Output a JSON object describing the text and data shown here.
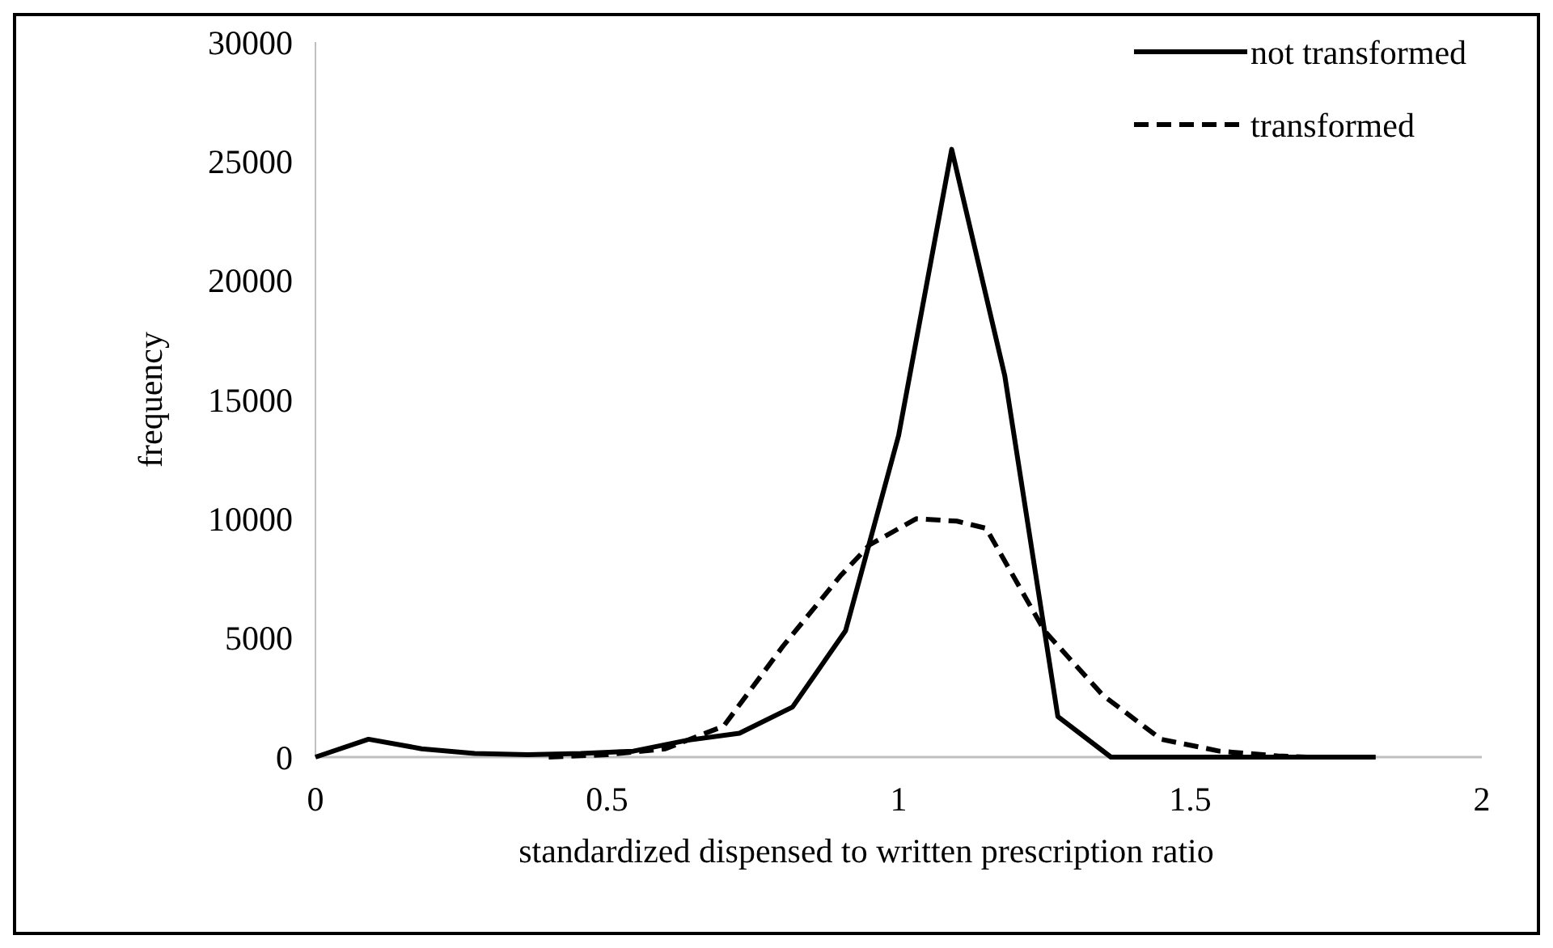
{
  "chart_data": {
    "type": "line",
    "xlabel": "standardized dispensed to written prescription ratio",
    "ylabel": "frequency",
    "xlim": [
      0,
      2
    ],
    "xticks": [
      0,
      0.5,
      1,
      1.5,
      2
    ],
    "ylim": [
      0,
      30000
    ],
    "yticks": [
      0,
      5000,
      10000,
      15000,
      20000,
      25000,
      30000
    ],
    "grid": false,
    "legend": "top right",
    "marker": "none",
    "series": [
      {
        "name": "not transformed",
        "color": "#000000",
        "line_style": "solid",
        "x": [
          0,
          0.091,
          0.182,
          0.273,
          0.364,
          0.455,
          0.545,
          0.636,
          0.727,
          0.818,
          0.909,
          1,
          1.091,
          1.182,
          1.273,
          1.364,
          1.455,
          1.545,
          1.636,
          1.727,
          1.818
        ],
        "values": [
          0,
          750,
          350,
          150,
          100,
          150,
          250,
          700,
          1000,
          2100,
          5300,
          13500,
          25500,
          16000,
          1700,
          0,
          0,
          0,
          0,
          0,
          0
        ]
      },
      {
        "name": "transformed",
        "color": "#000000",
        "line_style": "dashed",
        "x": [
          0.4,
          0.5,
          0.6,
          0.7,
          0.8,
          0.9,
          0.95,
          1.03,
          1.1,
          1.15,
          1.25,
          1.35,
          1.45,
          1.55,
          1.65,
          1.7
        ],
        "values": [
          0,
          100,
          350,
          1300,
          4600,
          7600,
          8900,
          10000,
          9900,
          9600,
          5300,
          2600,
          750,
          250,
          50,
          0
        ]
      }
    ]
  }
}
